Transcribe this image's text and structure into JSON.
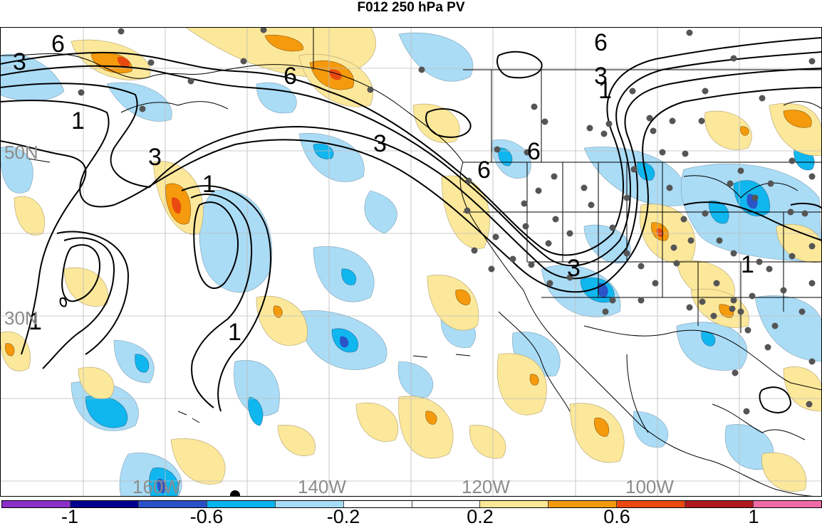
{
  "title": "F012 250 hPa PV",
  "map": {
    "latitude_labels": [
      "50N",
      "30N"
    ],
    "longitude_labels": [
      "160W",
      "140W",
      "120W",
      "100W"
    ],
    "contour_labels": [
      "6",
      "3",
      "6",
      "6",
      "3",
      "1",
      "3",
      "1",
      "3",
      "6",
      "6",
      "3",
      "1",
      "1",
      "1",
      "1"
    ],
    "station_marker_color": "#555555"
  },
  "colorbar": {
    "tick_labels": [
      "-1",
      "-0.6",
      "-0.2",
      "0.2",
      "0.6",
      "1"
    ],
    "colors": [
      "#8b2fc9",
      "#000090",
      "#2a50c8",
      "#08b4ee",
      "#a6dcf6",
      "#ffffff",
      "#ffffff",
      "#fde896",
      "#f59a0c",
      "#ea4a10",
      "#b01820",
      "#f06aa8"
    ]
  },
  "palette": {
    "light_blue": "#aadcf6",
    "mid_blue": "#10b6ee",
    "dark_blue": "#2a55c8",
    "light_yellow": "#fce89a",
    "orange": "#f59a0c",
    "red": "#e84a10"
  }
}
